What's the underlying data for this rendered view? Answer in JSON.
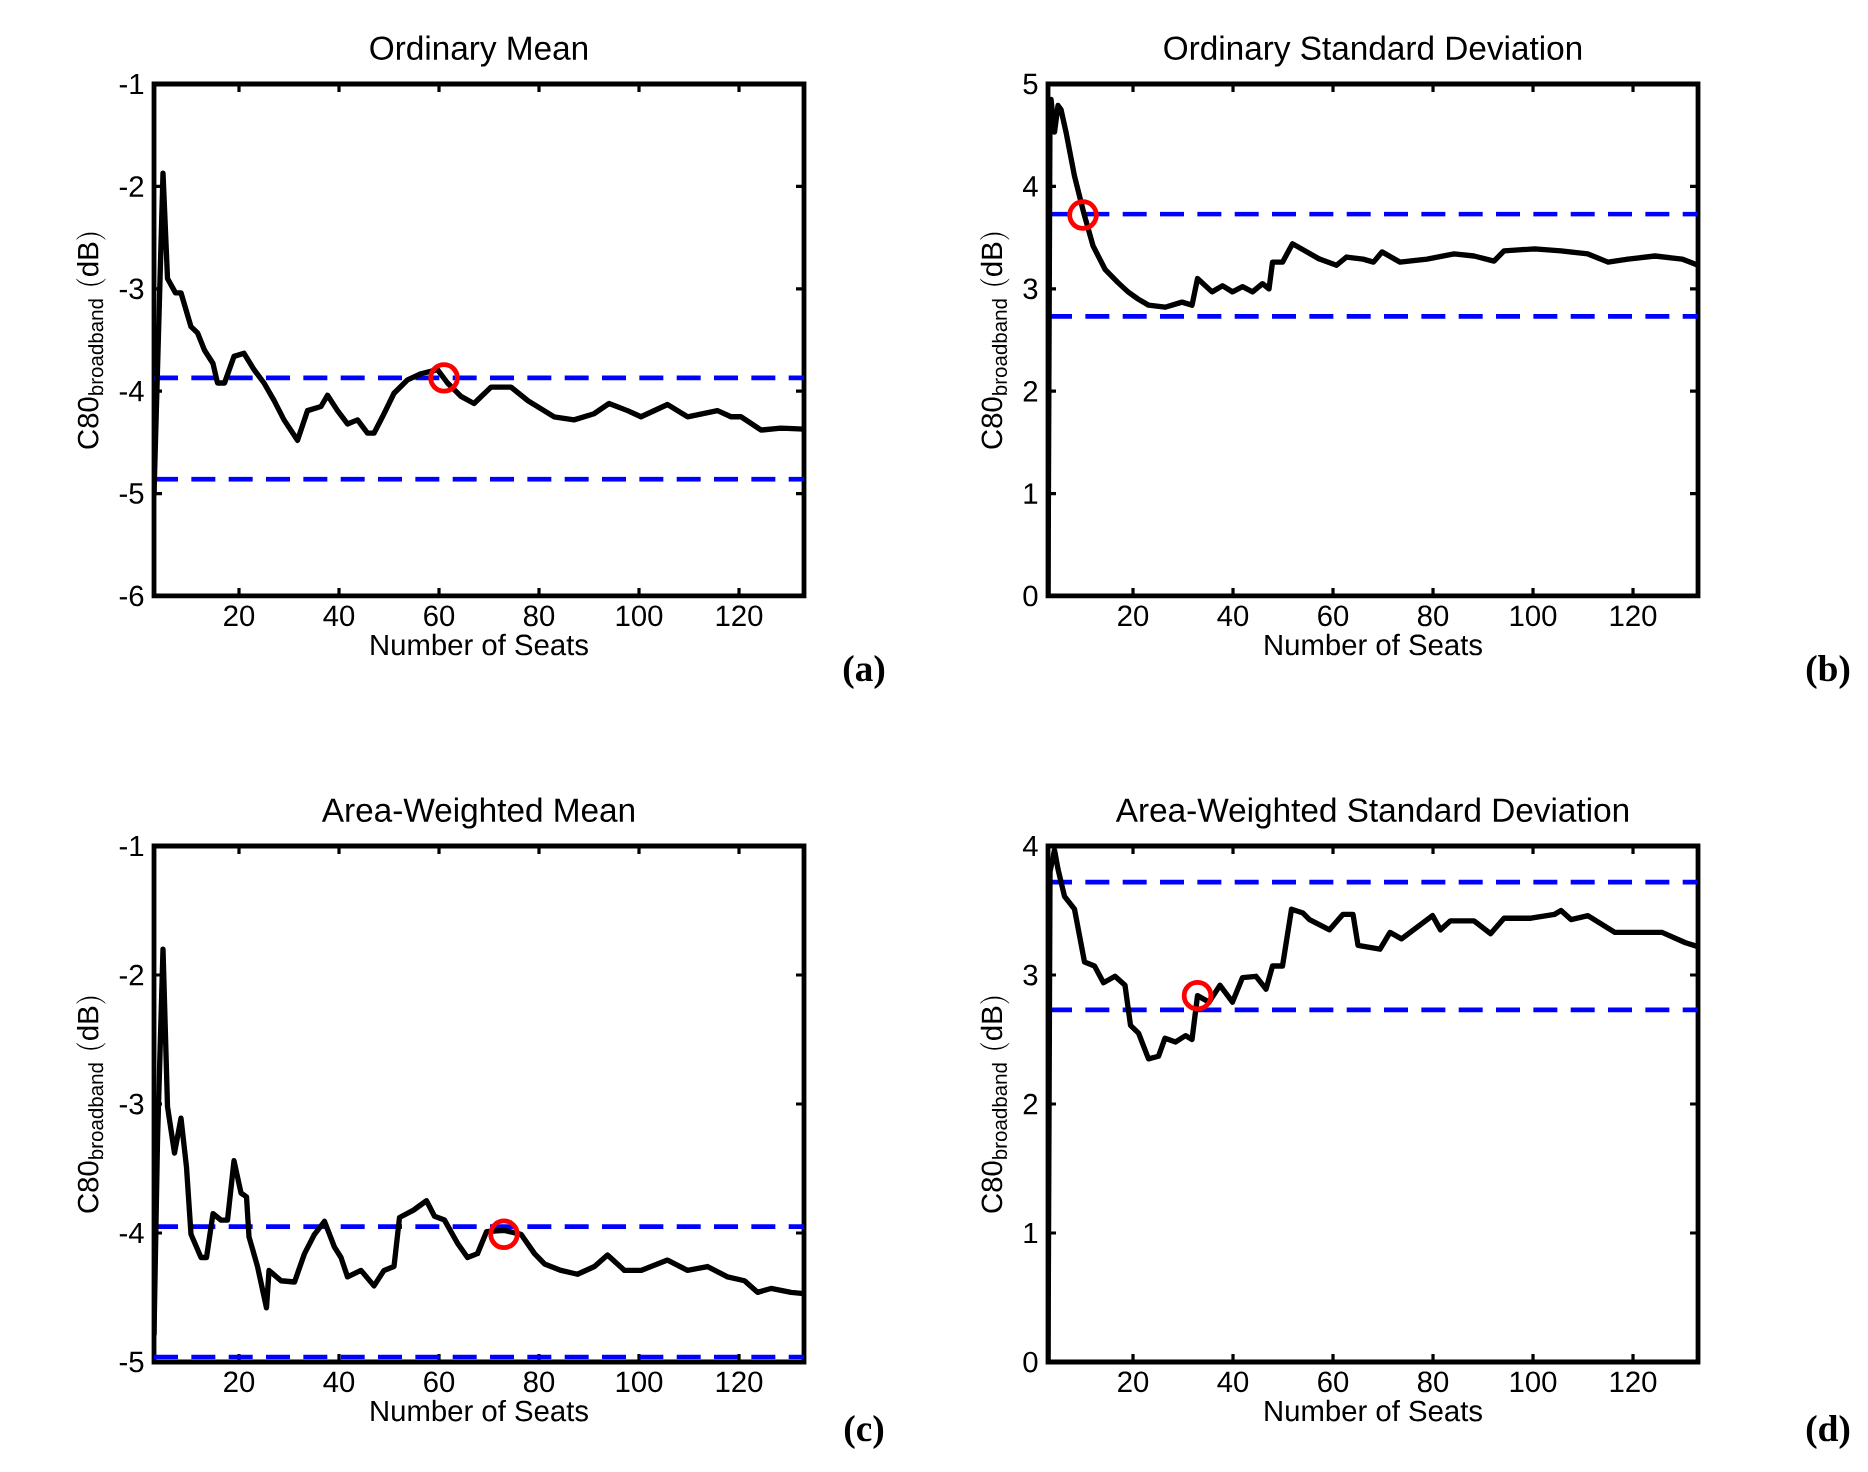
{
  "chart_data": [
    {
      "type": "line",
      "title": "Ordinary Mean",
      "xlabel": "Number of Seats",
      "ylabel": "\\mathrm{C80_{broadband}\\ (dB)}",
      "xlim": [
        3,
        133
      ],
      "ylim": [
        -6,
        -1
      ],
      "xticks": [
        20,
        40,
        60,
        80,
        100,
        120
      ],
      "yticks": [
        -6,
        -5,
        -4,
        -3,
        -2,
        -1
      ],
      "annotations": [
        "(a)"
      ],
      "series": [
        {
          "color": "#000000",
          "x": [
            3,
            4.8,
            5.7,
            7.3,
            8.4,
            10.4,
            11.7,
            13.1,
            14.8,
            15.7,
            17.1,
            19,
            21,
            23,
            25,
            27,
            29,
            31.7,
            33.7,
            36.4,
            37.7,
            39.7,
            41.7,
            43.7,
            45.7,
            47,
            49,
            51,
            53.7,
            56.4,
            59.7,
            61.7,
            64.4,
            67,
            70.4,
            74.4,
            77.7,
            83,
            87,
            91,
            94,
            97.7,
            100.4,
            105.7,
            109.7,
            115.7,
            118.4,
            120.4,
            124.4,
            128.4,
            133
          ],
          "values": [
            -5.0,
            -1.87,
            -2.9,
            -3.04,
            -3.04,
            -3.37,
            -3.43,
            -3.6,
            -3.73,
            -3.92,
            -3.92,
            -3.66,
            -3.63,
            -3.79,
            -3.92,
            -4.09,
            -4.28,
            -4.48,
            -4.19,
            -4.15,
            -4.04,
            -4.19,
            -4.32,
            -4.28,
            -4.41,
            -4.41,
            -4.22,
            -4.02,
            -3.89,
            -3.83,
            -3.79,
            -3.92,
            -4.05,
            -4.12,
            -3.96,
            -3.96,
            -4.09,
            -4.25,
            -4.28,
            -4.22,
            -4.12,
            -4.19,
            -4.25,
            -4.13,
            -4.25,
            -4.19,
            -4.25,
            -4.25,
            -4.38,
            -4.36,
            -4.37
          ]
        },
        {
          "type": "scatter",
          "marker": "circle",
          "color": "#ff0000",
          "x": [
            61
          ],
          "values": [
            -3.87
          ]
        }
      ],
      "ref_lines": [
        {
          "axis": "y",
          "value": -3.87,
          "color": "#0000ff",
          "line_style": "dashed"
        },
        {
          "axis": "y",
          "value": -4.86,
          "color": "#0000ff",
          "line_style": "dashed"
        }
      ]
    },
    {
      "type": "line",
      "title": "Ordinary Standard Deviation",
      "xlabel": "Number of Seats",
      "ylabel": "\\mathrm{C80_{broadband}\\ (dB)}",
      "xlim": [
        3,
        133
      ],
      "ylim": [
        0,
        5
      ],
      "xticks": [
        20,
        40,
        60,
        80,
        100,
        120
      ],
      "yticks": [
        0,
        1,
        2,
        3,
        4,
        5
      ],
      "annotations": [
        "(b)"
      ],
      "series": [
        {
          "color": "#000000",
          "x": [
            3,
            3.4,
            3.6,
            4.3,
            5,
            5.6,
            6.6,
            8.3,
            10.1,
            12,
            14.4,
            17,
            19,
            21,
            23.1,
            26.4,
            29.8,
            31.8,
            32.9,
            35.8,
            37.9,
            39.9,
            41.9,
            43.9,
            45.9,
            47.2,
            47.9,
            49.9,
            51.9,
            57.3,
            60.7,
            62.7,
            66,
            68.1,
            69.8,
            73.4,
            78.8,
            84.2,
            88.2,
            92.2,
            94.2,
            100.3,
            105.6,
            111,
            115,
            119,
            124.4,
            129.8,
            133
          ],
          "values": [
            0,
            4.8,
            4.85,
            4.53,
            4.79,
            4.75,
            4.53,
            4.1,
            3.75,
            3.42,
            3.19,
            3.06,
            2.97,
            2.9,
            2.84,
            2.82,
            2.87,
            2.84,
            3.1,
            2.97,
            3.03,
            2.97,
            3.02,
            2.97,
            3.05,
            3.0,
            3.26,
            3.26,
            3.44,
            3.29,
            3.23,
            3.31,
            3.29,
            3.26,
            3.36,
            3.26,
            3.29,
            3.34,
            3.32,
            3.27,
            3.37,
            3.39,
            3.37,
            3.34,
            3.26,
            3.29,
            3.32,
            3.29,
            3.23
          ]
        },
        {
          "type": "scatter",
          "marker": "circle",
          "color": "#ff0000",
          "x": [
            10
          ],
          "values": [
            3.72
          ]
        }
      ],
      "ref_lines": [
        {
          "axis": "y",
          "value": 3.73,
          "color": "#0000ff",
          "line_style": "dashed"
        },
        {
          "axis": "y",
          "value": 2.73,
          "color": "#0000ff",
          "line_style": "dashed"
        }
      ]
    },
    {
      "type": "line",
      "title": "Area-Weighted Mean",
      "xlabel": "Number of Seats",
      "ylabel": "\\mathrm{C80_{broadband}\\ (dB)}",
      "xlim": [
        3,
        133
      ],
      "ylim": [
        -5,
        -1
      ],
      "xticks": [
        20,
        40,
        60,
        80,
        100,
        120
      ],
      "yticks": [
        -5,
        -4,
        -3,
        -2,
        -1
      ],
      "annotations": [
        "(c)"
      ],
      "series": [
        {
          "color": "#000000",
          "x": [
            3,
            3.7,
            4.8,
            5.7,
            7.1,
            8.4,
            9.5,
            10.4,
            12.4,
            13.5,
            14.8,
            16.4,
            17.7,
            19,
            20.4,
            21.5,
            22,
            23.7,
            25.5,
            26,
            28.4,
            31.1,
            33.1,
            35.1,
            37.1,
            39.1,
            40.4,
            41.7,
            44.4,
            47,
            49,
            51,
            52.1,
            55,
            57.5,
            59.1,
            61.1,
            63.7,
            65.7,
            67.7,
            69.5,
            73.1,
            76.4,
            79.1,
            81.1,
            84.4,
            87.7,
            91.1,
            93.7,
            97.1,
            100.4,
            105.7,
            109.7,
            113.7,
            117.7,
            121.1,
            123.7,
            126.4,
            130.4,
            133
          ],
          "values": [
            -4.78,
            -3.28,
            -1.8,
            -3.02,
            -3.38,
            -3.11,
            -3.49,
            -4.01,
            -4.19,
            -4.19,
            -3.85,
            -3.9,
            -3.9,
            -3.44,
            -3.69,
            -3.72,
            -4.03,
            -4.26,
            -4.58,
            -4.29,
            -4.37,
            -4.38,
            -4.16,
            -4.01,
            -3.91,
            -4.11,
            -4.19,
            -4.34,
            -4.29,
            -4.41,
            -4.29,
            -4.26,
            -3.88,
            -3.82,
            -3.75,
            -3.87,
            -3.9,
            -4.08,
            -4.19,
            -4.16,
            -3.99,
            -3.98,
            -4.01,
            -4.16,
            -4.24,
            -4.29,
            -4.32,
            -4.26,
            -4.17,
            -4.29,
            -4.29,
            -4.21,
            -4.29,
            -4.26,
            -4.34,
            -4.37,
            -4.46,
            -4.43,
            -4.46,
            -4.47
          ]
        },
        {
          "type": "scatter",
          "marker": "circle",
          "color": "#ff0000",
          "x": [
            73
          ],
          "values": [
            -4.01
          ]
        }
      ],
      "ref_lines": [
        {
          "axis": "y",
          "value": -3.95,
          "color": "#0000ff",
          "line_style": "dashed"
        },
        {
          "axis": "y",
          "value": -4.96,
          "color": "#0000ff",
          "line_style": "dashed"
        }
      ]
    },
    {
      "type": "line",
      "title": "Area-Weighted Standard Deviation",
      "xlabel": "Number of Seats",
      "ylabel": "\\mathrm{C80_{broadband}\\ (dB)}",
      "xlim": [
        3,
        133
      ],
      "ylim": [
        0,
        4
      ],
      "xticks": [
        20,
        40,
        60,
        80,
        100,
        120
      ],
      "yticks": [
        0,
        1,
        2,
        3,
        4
      ],
      "annotations": [
        "(d)"
      ],
      "series": [
        {
          "color": "#000000",
          "x": [
            3,
            3.4,
            4.3,
            5,
            6.3,
            8.3,
            10.3,
            12.3,
            14.1,
            16.4,
            18.4,
            19.5,
            21.1,
            23.1,
            25.1,
            26.4,
            28.5,
            30.5,
            31.8,
            32.9,
            35.2,
            37.4,
            39.9,
            41.9,
            44.6,
            46.6,
            47.9,
            49.9,
            51.7,
            54,
            55.3,
            59.3,
            62,
            64,
            65,
            69.4,
            71.4,
            73.7,
            76.1,
            79.9,
            81.5,
            83.5,
            88.2,
            91.5,
            94.2,
            99.6,
            104.3,
            105.6,
            107.6,
            111,
            116.4,
            125.8,
            130.5,
            133
          ],
          "values": [
            0,
            3.8,
            3.97,
            3.82,
            3.61,
            3.51,
            3.1,
            3.07,
            2.94,
            2.99,
            2.92,
            2.61,
            2.55,
            2.35,
            2.37,
            2.51,
            2.48,
            2.53,
            2.5,
            2.84,
            2.79,
            2.92,
            2.79,
            2.98,
            2.99,
            2.89,
            3.07,
            3.07,
            3.51,
            3.48,
            3.43,
            3.35,
            3.47,
            3.47,
            3.23,
            3.2,
            3.33,
            3.28,
            3.35,
            3.46,
            3.35,
            3.42,
            3.42,
            3.32,
            3.44,
            3.44,
            3.47,
            3.5,
            3.43,
            3.46,
            3.33,
            3.33,
            3.25,
            3.22
          ]
        },
        {
          "type": "scatter",
          "marker": "circle",
          "color": "#ff0000",
          "x": [
            32.9
          ],
          "values": [
            2.84
          ]
        }
      ],
      "ref_lines": [
        {
          "axis": "y",
          "value": 3.72,
          "color": "#0000ff",
          "line_style": "dashed"
        },
        {
          "axis": "y",
          "value": 2.73,
          "color": "#0000ff",
          "line_style": "dashed"
        }
      ]
    }
  ]
}
